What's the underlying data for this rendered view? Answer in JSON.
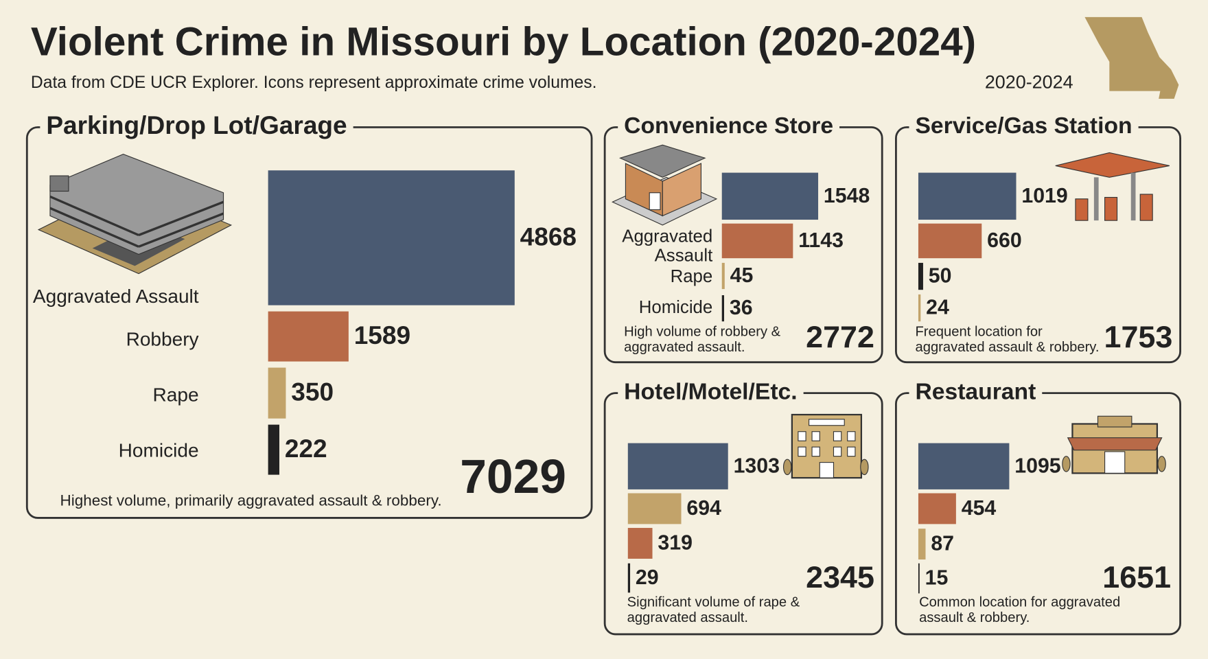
{
  "title": "Violent Crime in Missouri by Location (2020-2024)",
  "subtitle": "Data from CDE UCR Explorer. Icons represent approximate crime volumes.",
  "period": "2020-2024",
  "chart_data": [
    {
      "type": "bar",
      "title": "Parking/Drop Lot/Garage",
      "categories": [
        "Aggravated Assault",
        "Robbery",
        "Rape",
        "Homicide"
      ],
      "values": [
        4868,
        1589,
        350,
        222
      ],
      "colors": [
        "#4a5a72",
        "#b86a48",
        "#c2a36a",
        "#222222"
      ],
      "total": 7029,
      "note": "Highest volume, primarily aggravated assault & robbery."
    },
    {
      "type": "bar",
      "title": "Convenience Store",
      "categories": [
        "Aggravated Assault",
        null,
        "Rape",
        "Homicide"
      ],
      "values": [
        1548,
        1143,
        45,
        36
      ],
      "colors": [
        "#4a5a72",
        "#b86a48",
        "#c2a36a",
        "#222222"
      ],
      "total": 2772,
      "note": "High volume of robbery & aggravated assault."
    },
    {
      "type": "bar",
      "title": "Service/Gas Station",
      "values": [
        1019,
        660,
        50,
        24
      ],
      "colors": [
        "#4a5a72",
        "#b86a48",
        "#222222",
        "#c2a36a"
      ],
      "total": 1753,
      "note": "Frequent location for aggravated assault & robbery."
    },
    {
      "type": "bar",
      "title": "Hotel/Motel/Etc.",
      "values": [
        1303,
        694,
        319,
        29
      ],
      "colors": [
        "#4a5a72",
        "#c2a36a",
        "#b86a48",
        "#222222"
      ],
      "total": 2345,
      "note": "Significant volume of rape & aggravated assault."
    },
    {
      "type": "bar",
      "title": "Restaurant",
      "values": [
        1095,
        454,
        87,
        15
      ],
      "colors": [
        "#4a5a72",
        "#b86a48",
        "#c2a36a",
        "#222222"
      ],
      "total": 1651,
      "note": "Common location for aggravated assault & robbery."
    }
  ]
}
